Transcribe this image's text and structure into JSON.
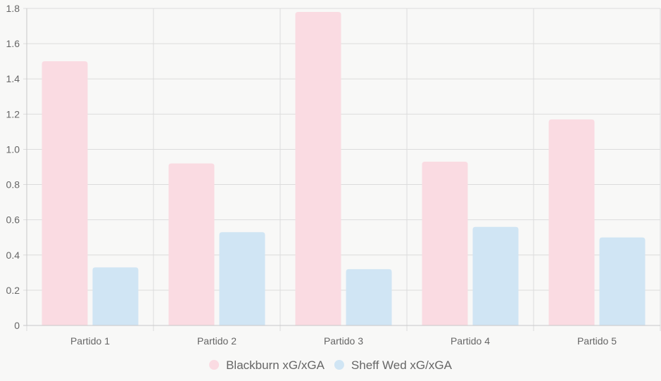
{
  "chart_data": {
    "type": "bar",
    "categories": [
      "Partido 1",
      "Partido 2",
      "Partido 3",
      "Partido 4",
      "Partido 5"
    ],
    "series": [
      {
        "name": "Blackburn xG/xGA",
        "values": [
          1.5,
          0.92,
          1.78,
          0.93,
          1.17
        ],
        "color": "#fadbe2"
      },
      {
        "name": "Sheff Wed xG/xGA",
        "values": [
          0.33,
          0.53,
          0.32,
          0.56,
          0.5
        ],
        "color": "#d0e5f4"
      }
    ],
    "ylim": [
      0,
      1.8
    ],
    "yticks": [
      "0",
      "0.2",
      "0.4",
      "0.6",
      "0.8",
      "1.0",
      "1.2",
      "1.4",
      "1.6",
      "1.8"
    ],
    "grid": true,
    "legend": "bottom",
    "colors": {
      "grid": "#dcdcdc",
      "axis": "#c8c8c8",
      "text": "#666666",
      "background": "#f8f8f7"
    }
  }
}
